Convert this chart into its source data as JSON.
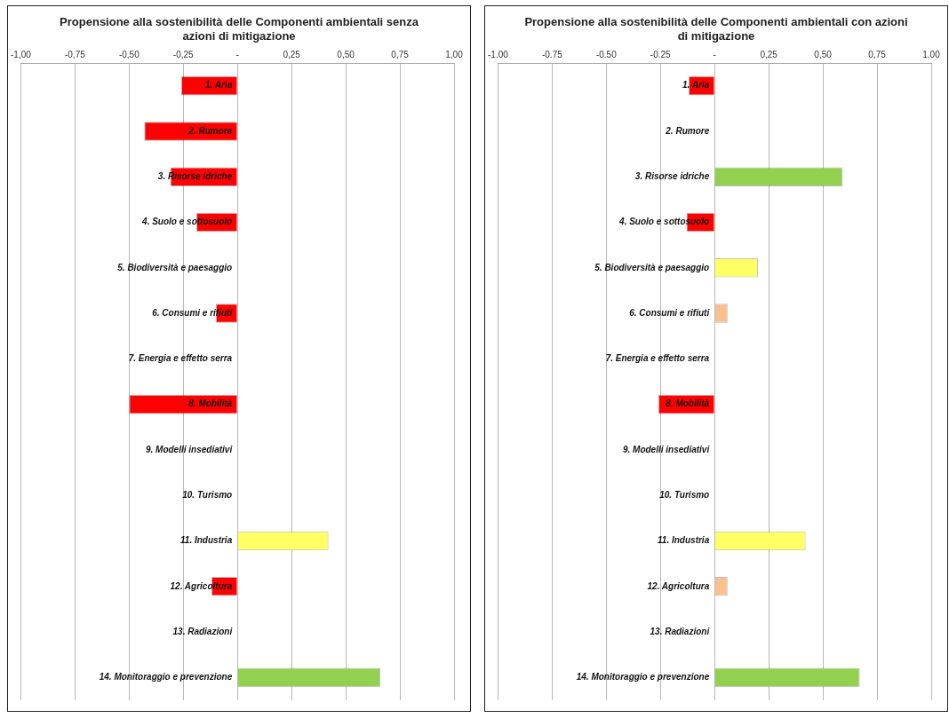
{
  "chart_data": [
    {
      "type": "bar",
      "orientation": "horizontal",
      "title": "Propensione alla sostenibilità delle Componenti ambientali senza azioni di mitigazione",
      "categories": [
        "1. Aria",
        "2. Rumore",
        "3. Risorse idriche",
        "4. Suolo e sottosuolo",
        "5. Biodiversità e paesaggio",
        "6. Consumi e rifiuti",
        "7. Energia e effetto serra",
        "8. Mobilità",
        "9. Modelli insediativi",
        "10. Turismo",
        "11. Industria",
        "12. Agricoltura",
        "13. Radiazioni",
        "14. Monitoraggio e prevenzione"
      ],
      "values": [
        -0.26,
        -0.43,
        -0.31,
        -0.19,
        0,
        -0.1,
        0,
        -0.5,
        0,
        0,
        0.42,
        -0.12,
        0,
        0.66
      ],
      "colors": [
        "#ff0000",
        "#ff0000",
        "#ff0000",
        "#ff0000",
        "#ff0000",
        "#ff0000",
        "#ff0000",
        "#ff0000",
        "#ff0000",
        "#ff0000",
        "#ffff66",
        "#ff0000",
        "#ff0000",
        "#92d050"
      ],
      "xlim": [
        -1,
        1
      ],
      "xticks": [
        {
          "value": -1,
          "label": "-1,00"
        },
        {
          "value": -0.75,
          "label": "-0,75"
        },
        {
          "value": -0.5,
          "label": "-0,50"
        },
        {
          "value": -0.25,
          "label": "-0,25"
        },
        {
          "value": 0,
          "label": "-"
        },
        {
          "value": 0.25,
          "label": "0,25"
        },
        {
          "value": 0.5,
          "label": "0,50"
        },
        {
          "value": 0.75,
          "label": "0,75"
        },
        {
          "value": 1,
          "label": "1,00"
        }
      ],
      "grid": "x",
      "legend": false
    },
    {
      "type": "bar",
      "orientation": "horizontal",
      "title": "Propensione alla sostenibilità delle Componenti ambientali con azioni di mitigazione",
      "categories": [
        "1. Aria",
        "2. Rumore",
        "3. Risorse idriche",
        "4. Suolo e sottosuolo",
        "5. Biodiversità e paesaggio",
        "6. Consumi e rifiuti",
        "7. Energia e effetto serra",
        "8. Mobilità",
        "9. Modelli insediativi",
        "10. Turismo",
        "11. Industria",
        "12. Agricoltura",
        "13. Radiazioni",
        "14. Monitoraggio e prevenzione"
      ],
      "values": [
        -0.12,
        0,
        0.59,
        -0.13,
        0.2,
        0.06,
        0,
        -0.26,
        0,
        0,
        0.42,
        0.06,
        0,
        0.67
      ],
      "colors": [
        "#ff0000",
        "#ff0000",
        "#92d050",
        "#ff0000",
        "#ffff66",
        "#fac090",
        "#ff0000",
        "#ff0000",
        "#ff0000",
        "#ff0000",
        "#ffff66",
        "#fac090",
        "#ff0000",
        "#92d050"
      ],
      "xlim": [
        -1,
        1
      ],
      "xticks": [
        {
          "value": -1,
          "label": "-1.00"
        },
        {
          "value": -0.75,
          "label": "-0.75"
        },
        {
          "value": -0.5,
          "label": "-0.50"
        },
        {
          "value": -0.25,
          "label": "-0.25"
        },
        {
          "value": 0,
          "label": "-"
        },
        {
          "value": 0.25,
          "label": "0,25"
        },
        {
          "value": 0.5,
          "label": "0,50"
        },
        {
          "value": 0.75,
          "label": "0,75"
        },
        {
          "value": 1,
          "label": "1.00"
        }
      ],
      "grid": "x",
      "legend": false
    }
  ]
}
